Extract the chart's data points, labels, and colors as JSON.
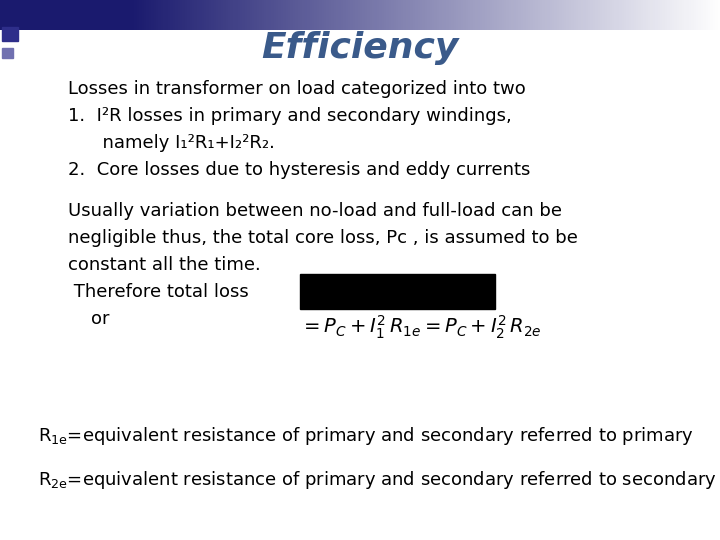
{
  "title": "Efficiency",
  "title_color": "#3a5a8a",
  "title_fontsize": 26,
  "bg_color": "#ffffff",
  "body_font_color": "#000000",
  "body_fontsize": 13,
  "line1": "Losses in transformer on load categorized into two",
  "line2": "1.  I²R losses in primary and secondary windings,",
  "line3": "      namely I₁²R₁+I₂²R₂.",
  "line4": "2.  Core losses due to hysteresis and eddy currents",
  "line5": "Usually variation between no-load and full-load can be",
  "line6": "negligible thus, the total core loss, Pᴄ , is assumed to be",
  "line7": "constant all the time.",
  "line8": " Therefore total loss",
  "line9": "    or"
}
